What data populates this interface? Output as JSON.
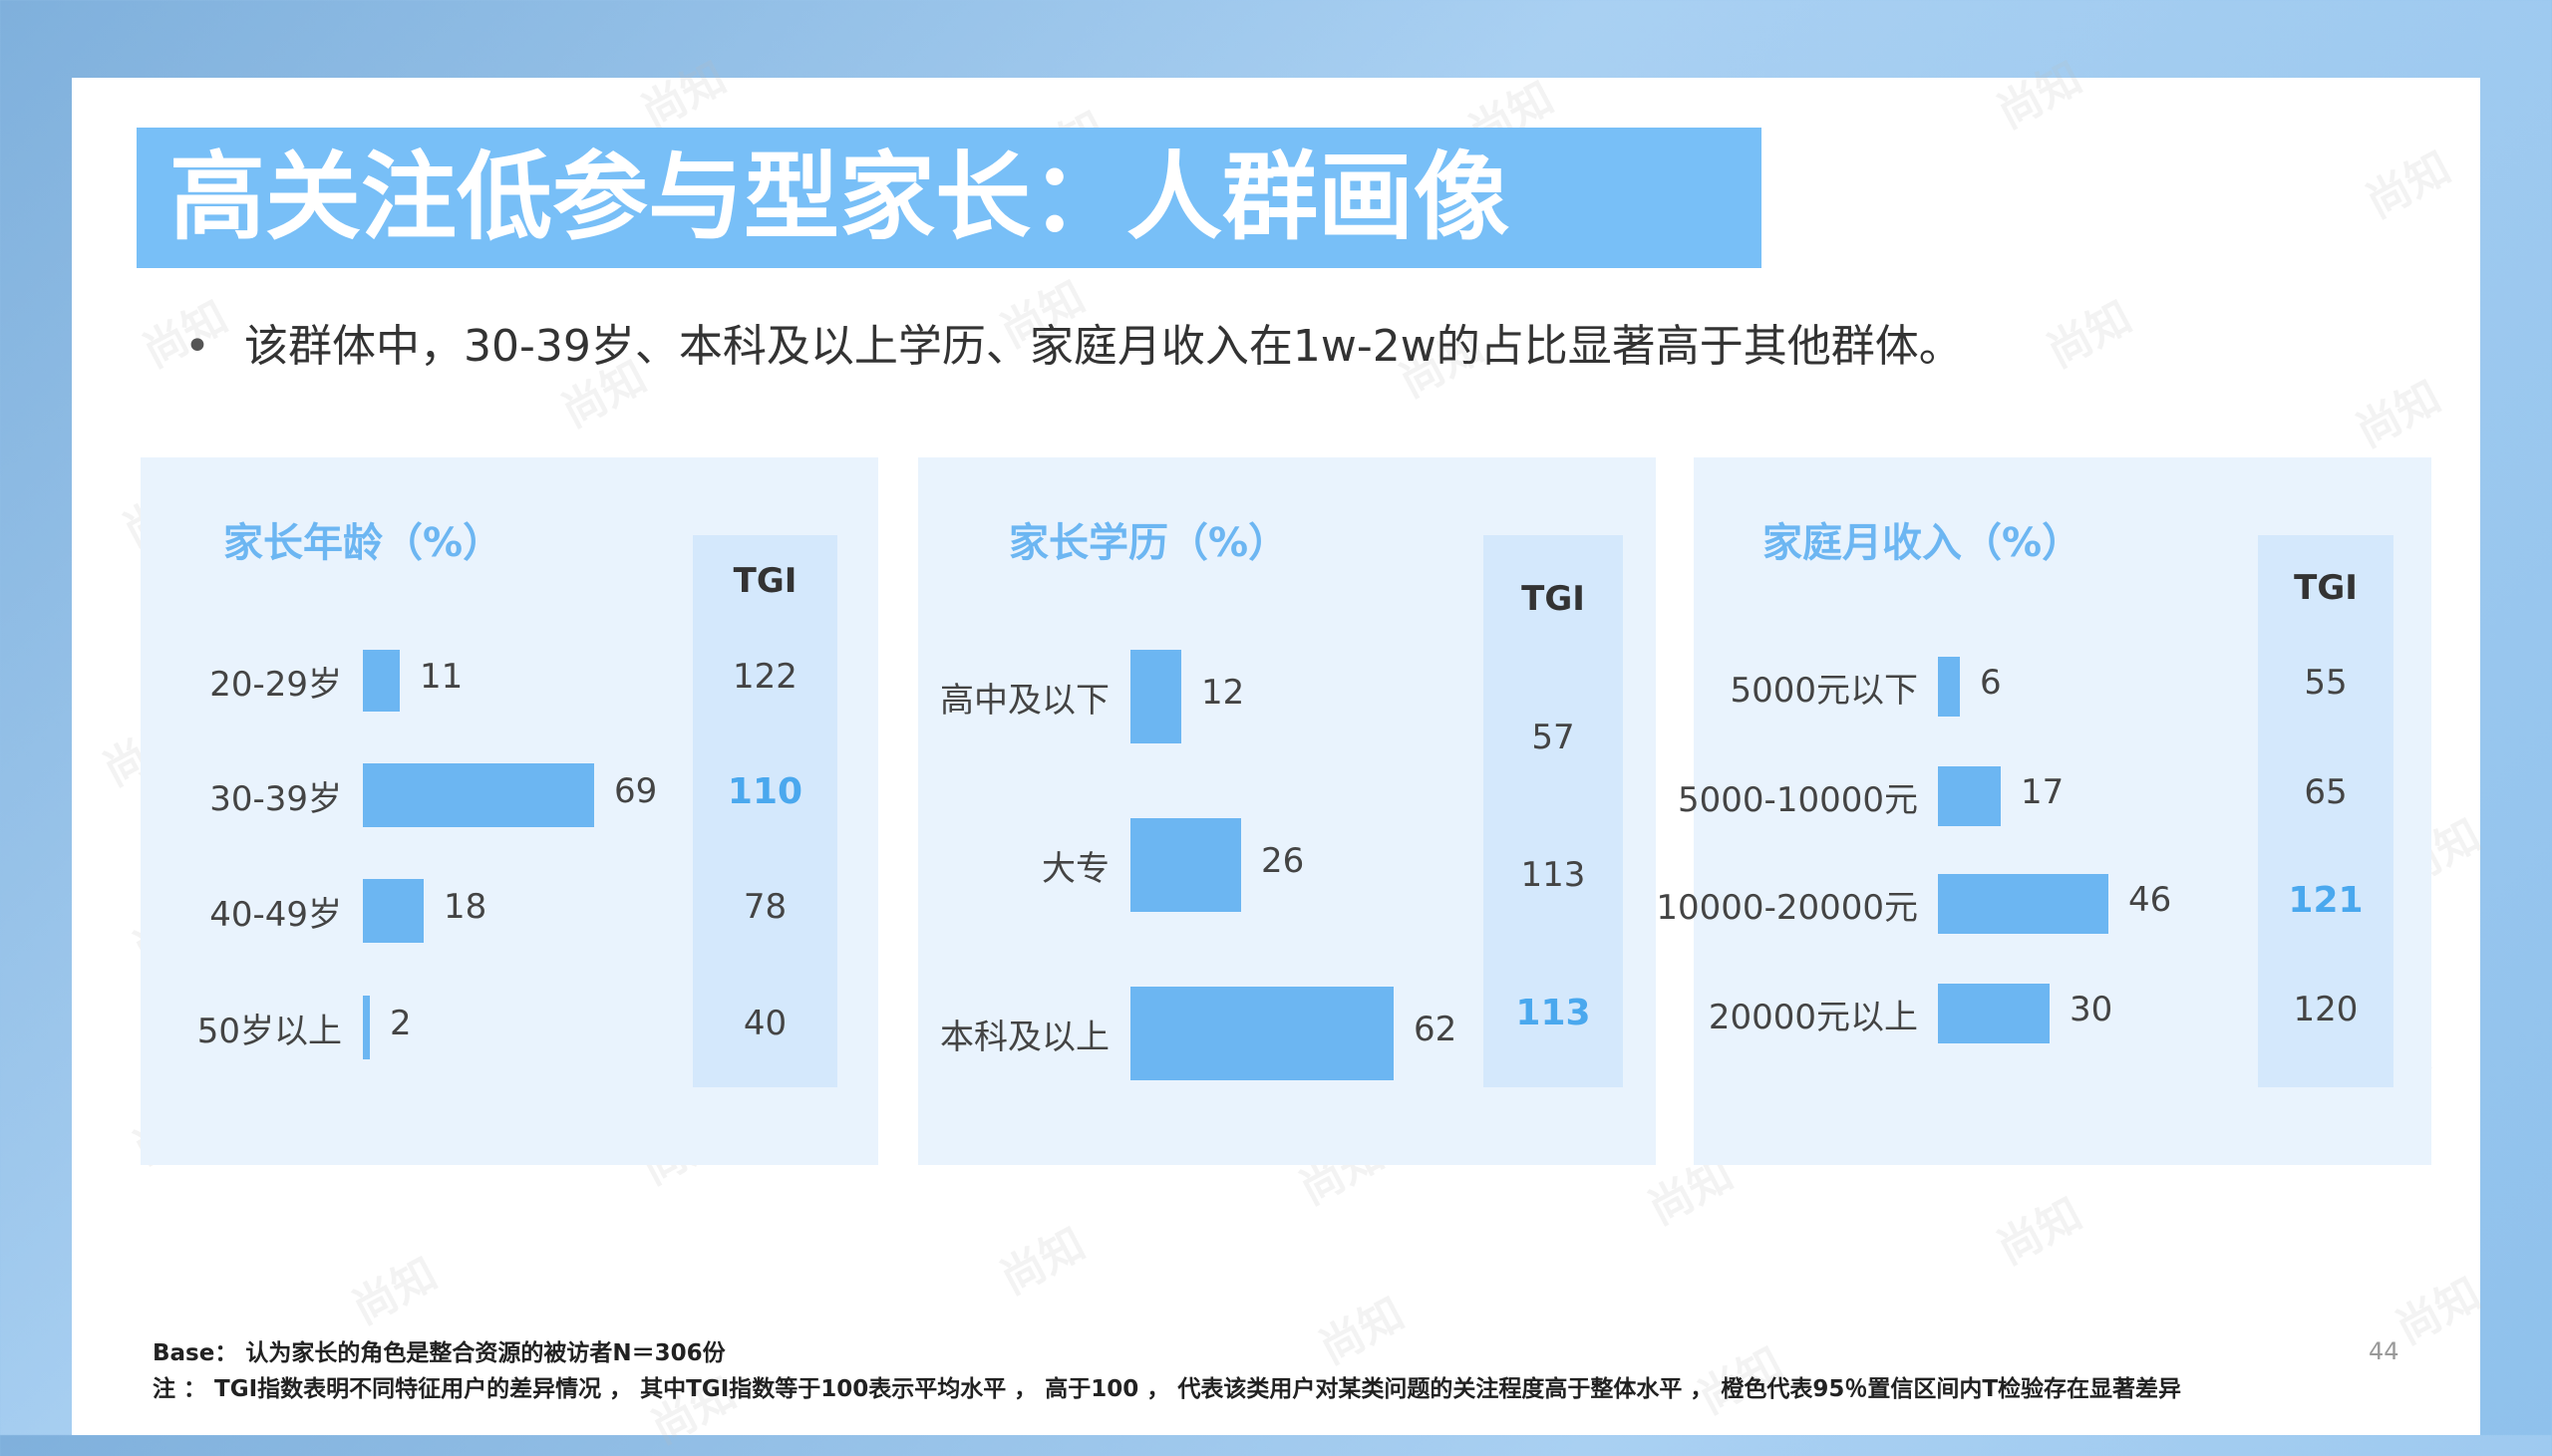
{
  "title": "高关注低参与型家长：人群画像",
  "bullet": {
    "marker": "•",
    "text": "该群体中，30-39岁、本科及以上学历、家庭月收入在1w-2w的占比显著高于其他群体。"
  },
  "tgi_header": "TGI",
  "chart_data": [
    {
      "type": "bar",
      "title": "家长年龄（%）",
      "categories": [
        "20-29岁",
        "30-39岁",
        "40-49岁",
        "50岁以上"
      ],
      "values": [
        11,
        69,
        18,
        2
      ],
      "tgi": [
        122,
        110,
        78,
        40
      ],
      "tgi_highlight": [
        false,
        true,
        false,
        false
      ],
      "color": "#6cb6f2"
    },
    {
      "type": "bar",
      "title": "家长学历（%）",
      "categories": [
        "高中及以下",
        "大专",
        "本科及以上"
      ],
      "values": [
        12,
        26,
        62
      ],
      "tgi": [
        57,
        113,
        113
      ],
      "tgi_highlight": [
        false,
        false,
        true
      ],
      "color": "#6cb6f2"
    },
    {
      "type": "bar",
      "title": "家庭月收入（%）",
      "categories": [
        "5000元以下",
        "5000-10000元",
        "10000-20000元",
        "20000元以上"
      ],
      "values": [
        6,
        17,
        46,
        30
      ],
      "tgi": [
        55,
        65,
        121,
        120
      ],
      "tgi_highlight": [
        false,
        false,
        true,
        false
      ],
      "color": "#6cb6f2"
    }
  ],
  "footnotes": {
    "base": "Base：  认为家长的角色是整合资源的被访者N＝306份",
    "note": "注 ：  TGI指数表明不同特征用户的差异情况 ，  其中TGI指数等于100表示平均水平 ，  高于100 ，  代表该类用户对某类问题的关注程度高于整体水平 ，  橙色代表95％置信区间内T检验存在显著差异"
  },
  "page_number": "44",
  "watermark": "尚知",
  "colors": {
    "accent": "#6cb6f2",
    "title_bar": "#78bff7",
    "panel_bg": "#e9f3fd",
    "tgi_bg": "#d4e8fc",
    "highlight": "#4aa8ee"
  }
}
